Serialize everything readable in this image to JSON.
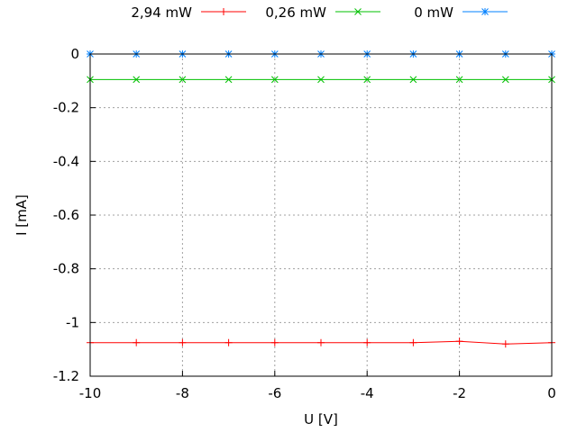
{
  "chart_data": {
    "type": "line",
    "xlabel": "U [V]",
    "ylabel": "I [mA]",
    "xlim": [
      -10,
      0
    ],
    "ylim": [
      -1.2,
      0
    ],
    "xticks": [
      -10,
      -8,
      -6,
      -4,
      -2,
      0
    ],
    "yticks": [
      0,
      -0.2,
      -0.4,
      -0.6,
      -0.8,
      -1,
      -1.2
    ],
    "grid": true,
    "legend_position": "top",
    "x": [
      -10,
      -9,
      -8,
      -7,
      -6,
      -5,
      -4,
      -3,
      -2,
      -1,
      0
    ],
    "series": [
      {
        "name": "2,94 mW",
        "color": "#ff0000",
        "marker": "plus",
        "values": [
          -1.075,
          -1.075,
          -1.075,
          -1.075,
          -1.075,
          -1.075,
          -1.075,
          -1.075,
          -1.07,
          -1.08,
          -1.075
        ]
      },
      {
        "name": "0,26 mW",
        "color": "#00c000",
        "marker": "cross",
        "values": [
          -0.095,
          -0.095,
          -0.095,
          -0.095,
          -0.095,
          -0.095,
          -0.095,
          -0.095,
          -0.095,
          -0.095,
          -0.095
        ]
      },
      {
        "name": "0 mW",
        "color": "#0080ff",
        "marker": "star",
        "values": [
          0,
          0,
          0,
          0,
          0,
          0,
          0,
          0,
          0,
          0,
          0
        ]
      }
    ]
  }
}
